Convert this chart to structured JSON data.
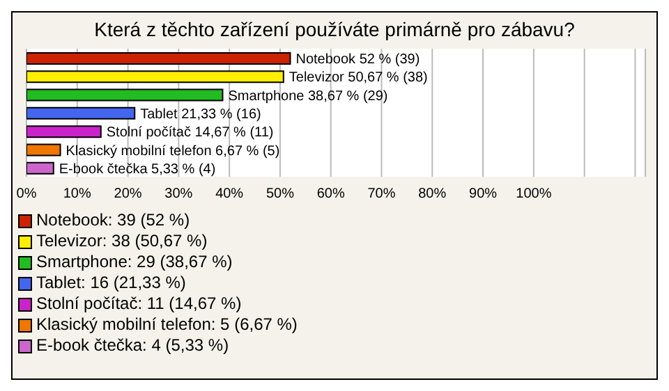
{
  "chart_data": {
    "type": "bar",
    "title": "Která z těchto zařízení používáte primárně pro zábavu?",
    "orientation": "horizontal",
    "stacked": true,
    "categories": [
      null,
      null,
      null,
      null,
      null,
      null,
      null
    ],
    "series": [
      {
        "name": "Notebook: 39 (52 %)",
        "color": "#cc2200",
        "values": [
          52,
          null,
          null,
          null,
          null,
          null,
          null
        ],
        "value_labels": [
          "Notebook 52 % (39)",
          null,
          null,
          null,
          null,
          null,
          null
        ]
      },
      {
        "name": "Televizor: 38 (50,67 %)",
        "color": "#ffee00",
        "values": [
          null,
          50.67,
          null,
          null,
          null,
          null,
          null
        ],
        "value_labels": [
          null,
          "Televizor 50,67 % (38)",
          null,
          null,
          null,
          null,
          null
        ]
      },
      {
        "name": "Smartphone: 29 (38,67 %)",
        "color": "#22bb22",
        "values": [
          null,
          null,
          38.67,
          null,
          null,
          null,
          null
        ],
        "value_labels": [
          null,
          null,
          "Smartphone 38,67 % (29)",
          null,
          null,
          null,
          null
        ]
      },
      {
        "name": "Tablet: 16 (21,33 %)",
        "color": "#4466ee",
        "values": [
          null,
          null,
          null,
          21.33,
          null,
          null,
          null
        ],
        "value_labels": [
          null,
          null,
          null,
          "Tablet 21,33 % (16)",
          null,
          null,
          null
        ]
      },
      {
        "name": "Stolní počítač: 11 (14,67 %)",
        "color": "#cc22cc",
        "values": [
          null,
          null,
          null,
          null,
          14.67,
          null,
          null
        ],
        "value_labels": [
          null,
          null,
          null,
          null,
          "Stolní počítač 14,67 % (11)",
          null,
          null
        ]
      },
      {
        "name": "Klasický mobilní telefon: 5 (6,67 %)",
        "color": "#ee7700",
        "values": [
          null,
          null,
          null,
          null,
          null,
          6.67,
          null
        ],
        "value_labels": [
          null,
          null,
          null,
          null,
          null,
          "Klasický mobilní telefon 6,67 % (5)",
          null
        ]
      },
      {
        "name": "E-book čtečka: 4 (5,33 %)",
        "color": "#cc66cc",
        "values": [
          null,
          null,
          null,
          null,
          null,
          null,
          5.33
        ],
        "value_labels": [
          null,
          null,
          null,
          null,
          null,
          null,
          "E-book čtečka 5,33 % (4)"
        ]
      }
    ],
    "xlim": [
      0,
      122
    ],
    "xticks": [
      {
        "value": 0,
        "label": "0%"
      },
      {
        "value": 10,
        "label": "10%"
      },
      {
        "value": 20,
        "label": "20%"
      },
      {
        "value": 30,
        "label": "30%"
      },
      {
        "value": 40,
        "label": "40%"
      },
      {
        "value": 50,
        "label": "50%"
      },
      {
        "value": 60,
        "label": "60%"
      },
      {
        "value": 70,
        "label": "70%"
      },
      {
        "value": 80,
        "label": "80%"
      },
      {
        "value": 90,
        "label": "90%"
      },
      {
        "value": 100,
        "label": "100%"
      },
      {
        "value": 110,
        "label": null
      },
      {
        "value": 120,
        "label": null
      }
    ],
    "grid": "x",
    "legend": "bottom",
    "tick_labels": "x"
  }
}
